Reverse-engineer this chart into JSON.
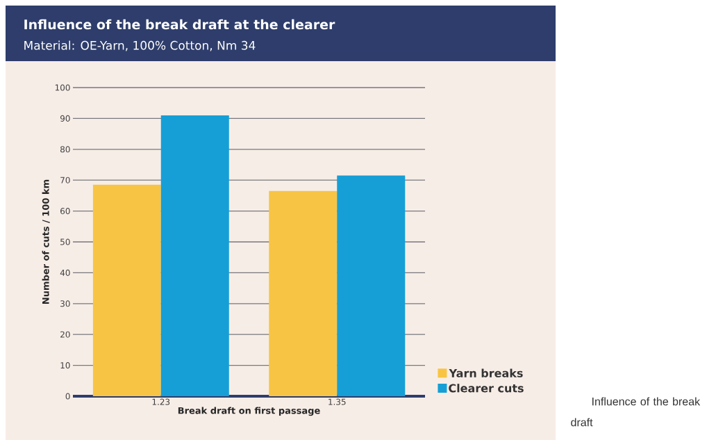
{
  "chart_data": {
    "type": "bar",
    "title": "Influence of the break draft at the clearer",
    "subtitle": "Material: OE-Yarn, 100% Cotton, Nm 34",
    "xlabel": "Break draft on first passage",
    "ylabel": "Number of cuts / 100 km",
    "categories": [
      "1.23",
      "1.35"
    ],
    "series": [
      {
        "name": "Yarn breaks",
        "color": "#f8c443",
        "values": [
          68.5,
          66.5
        ]
      },
      {
        "name": "Clearer cuts",
        "color": "#159fd6",
        "values": [
          91,
          71.5
        ]
      }
    ],
    "ylim": [
      0,
      100
    ],
    "yticks": [
      0,
      10,
      20,
      30,
      40,
      50,
      60,
      70,
      80,
      90,
      100
    ],
    "grid": "y",
    "legend": "bottom right",
    "annotations": [
      "Influence of the break draft"
    ]
  }
}
